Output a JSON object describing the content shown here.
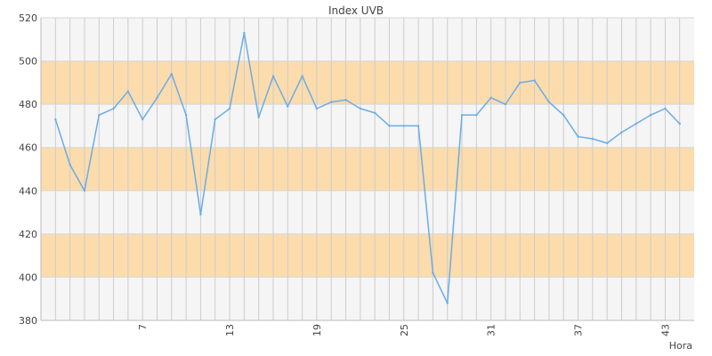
{
  "chart_data": {
    "type": "line",
    "title": "Index UVB",
    "xlabel": "Hora",
    "ylabel": "",
    "ylim": [
      380,
      520
    ],
    "xlim": [
      0,
      45
    ],
    "y_ticks": [
      380,
      400,
      420,
      440,
      460,
      480,
      500,
      520
    ],
    "x_ticks": [
      7,
      13,
      19,
      25,
      31,
      37,
      43
    ],
    "grid": true,
    "bands": [
      {
        "from": 400,
        "to": 420,
        "color": "#fcdcac"
      },
      {
        "from": 440,
        "to": 460,
        "color": "#fcdcac"
      },
      {
        "from": 480,
        "to": 500,
        "color": "#fcdcac"
      }
    ],
    "plot_background": "#f5f5f5",
    "series": [
      {
        "color": "#6aace8",
        "x": [
          1,
          2,
          3,
          4,
          5,
          6,
          7,
          8,
          9,
          10,
          11,
          12,
          13,
          14,
          15,
          16,
          17,
          18,
          19,
          20,
          21,
          22,
          23,
          24,
          25,
          26,
          27,
          28,
          29,
          30,
          31,
          32,
          33,
          34,
          35,
          36,
          37,
          38,
          39,
          40,
          41,
          42,
          43,
          44,
          45
        ],
        "values": [
          473,
          452,
          440,
          475,
          478,
          486,
          473,
          483,
          494,
          475,
          429,
          473,
          478,
          513,
          474,
          493,
          479,
          493,
          478,
          481,
          482,
          478,
          476,
          470,
          470,
          470,
          402,
          388,
          475,
          475,
          483,
          480,
          490,
          491,
          481,
          475,
          465,
          464,
          462,
          467,
          471,
          475,
          478,
          471,
          null
        ]
      }
    ]
  }
}
